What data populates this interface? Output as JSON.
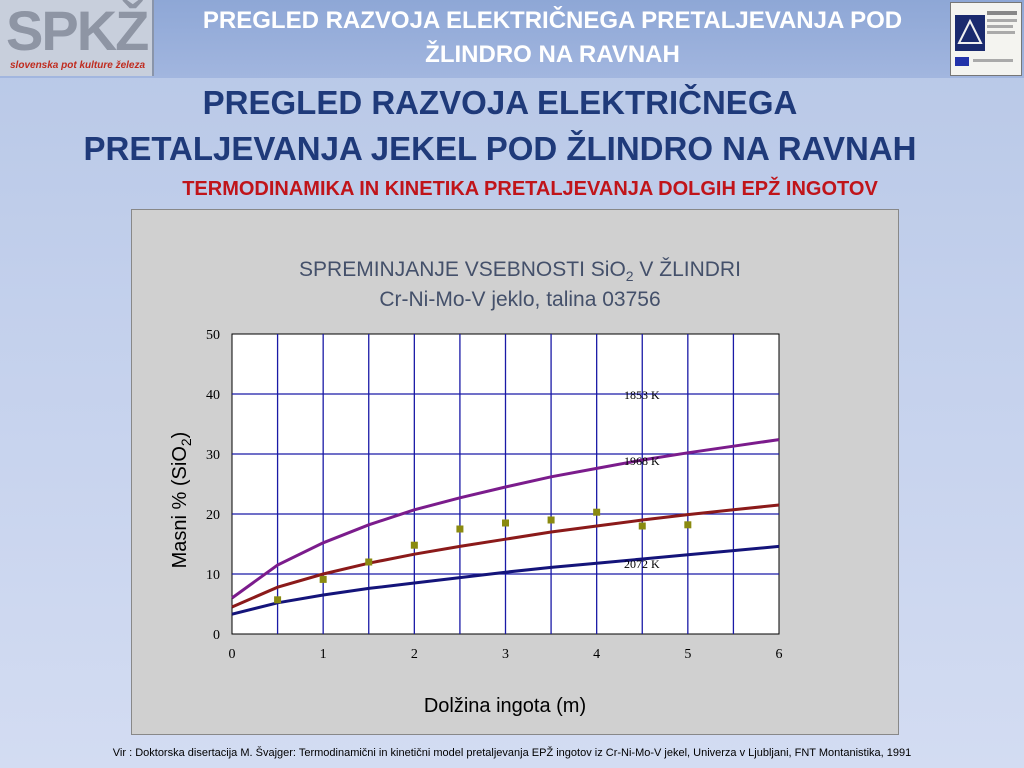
{
  "header": {
    "title_line1": "PREGLED RAZVOJA ELEKTRIČNEGA PRETALJEVANJA POD",
    "title_line2": "ŽLINDRO NA RAVNAH",
    "logo_text": "SPKŽ",
    "logo_sub": "slovenska pot kulture železa"
  },
  "slide": {
    "title_line1": "PREGLED RAZVOJA ELEKTRIČNEGA",
    "title_line2": "PRETALJEVANJA JEKEL POD ŽLINDRO NA RAVNAH",
    "subtitle": "TERMODINAMIKA IN KINETIKA PRETALJEVANJA DOLGIH EPŽ INGOTOV"
  },
  "citation": "Vir : Doktorska disertacija M. Švajger: Termodinamični in kinetični model pretaljevanja EPŽ ingotov iz Cr-Ni-Mo-V jekel, Univerza v Ljubljani, FNT Montanistika, 1991",
  "colors": {
    "curve_1853": "#7b1c8c",
    "curve_1968": "#8b1a1a",
    "curve_2072": "#14147a",
    "points": "#8a8a10",
    "grid": "#1a1aa6"
  },
  "chart_data": {
    "type": "line",
    "title_main": "SPREMINJANJE VSEBNOSTI SiO",
    "title_sub_2": "2",
    "title_after": " V ŽLINDRI",
    "title_line2": "Cr-Ni-Mo-V jeklo, talina 03756",
    "xlabel": "Dolžina ingota (m)",
    "ylabel_main": "Masni %  (SiO",
    "ylabel_sub": "2",
    "ylabel_end": ")",
    "xlim": [
      0,
      6
    ],
    "ylim": [
      0,
      50
    ],
    "xticks": [
      "0",
      "1",
      "2",
      "3",
      "4",
      "5",
      "6"
    ],
    "yticks": [
      "0",
      "10",
      "20",
      "30",
      "40",
      "50"
    ],
    "grid": true,
    "series": [
      {
        "name": "1853 K",
        "x": [
          0,
          0.5,
          1,
          1.5,
          2,
          2.5,
          3,
          3.5,
          4,
          4.5,
          5,
          5.5,
          6
        ],
        "values": [
          6,
          11.5,
          15.2,
          18.2,
          20.7,
          22.7,
          24.5,
          26.2,
          27.6,
          29,
          30.2,
          31.3,
          32.4
        ]
      },
      {
        "name": "1968 K",
        "x": [
          0,
          0.5,
          1,
          1.5,
          2,
          2.5,
          3,
          3.5,
          4,
          4.5,
          5,
          5.5,
          6
        ],
        "values": [
          4.5,
          7.8,
          10,
          11.8,
          13.3,
          14.6,
          15.8,
          17,
          18,
          19,
          19.9,
          20.7,
          21.5
        ]
      },
      {
        "name": "2072 K",
        "x": [
          0,
          0.5,
          1,
          1.5,
          2,
          2.5,
          3,
          3.5,
          4,
          4.5,
          5,
          5.5,
          6
        ],
        "values": [
          3.3,
          5.2,
          6.5,
          7.6,
          8.5,
          9.4,
          10.3,
          11.1,
          11.8,
          12.5,
          13.2,
          13.9,
          14.6
        ]
      }
    ],
    "points": {
      "x": [
        0.5,
        1,
        1.5,
        2,
        2.5,
        3,
        3.5,
        4,
        4.5,
        5
      ],
      "values": [
        5.7,
        9.1,
        12,
        14.8,
        17.5,
        18.5,
        19,
        20.3,
        18,
        18.2
      ]
    }
  }
}
